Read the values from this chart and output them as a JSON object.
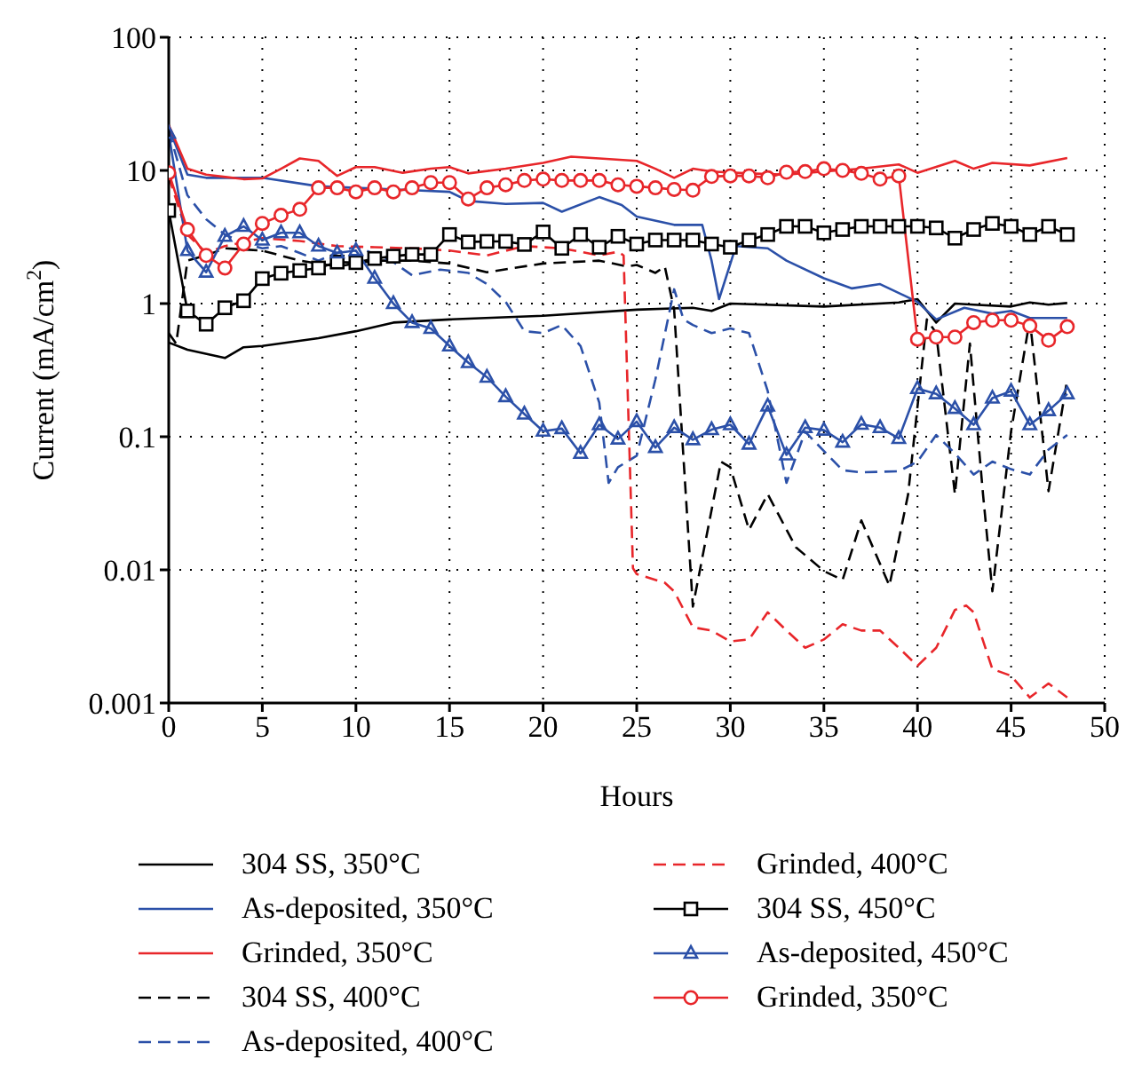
{
  "chart_data": {
    "type": "line",
    "xlabel": "Hours",
    "ylabel": "Current (mA/cm$^{2}$)",
    "xlim": [
      0,
      50
    ],
    "xticks": [
      0,
      5,
      10,
      15,
      20,
      25,
      30,
      35,
      40,
      45,
      50
    ],
    "ylim": [
      0.001,
      100
    ],
    "yticks": [
      0.001,
      0.01,
      0.1,
      1,
      10,
      100
    ],
    "log": "y",
    "grid": true,
    "legend": "bottom",
    "series": [
      {
        "name": "304 SS, 350°C",
        "color": "#000000",
        "line_style": "solid",
        "marker": "none",
        "x": [
          0,
          1,
          3,
          4,
          5,
          8,
          10,
          12,
          15,
          20,
          25,
          28,
          29,
          30,
          35,
          39,
          40,
          41,
          42,
          43,
          45,
          46,
          47,
          48
        ],
        "values": [
          0.51,
          0.45,
          0.39,
          0.47,
          0.48,
          0.55,
          0.62,
          0.72,
          0.76,
          0.81,
          0.9,
          0.93,
          0.88,
          1.0,
          0.95,
          1.02,
          1.08,
          0.72,
          1.0,
          0.98,
          0.95,
          1.02,
          0.98,
          1.01
        ]
      },
      {
        "name": "As-deposited, 350°C",
        "color": "#2b50a8",
        "line_style": "solid",
        "marker": "none",
        "x": [
          0,
          1,
          2,
          5,
          8,
          10,
          13,
          15,
          16,
          18,
          20,
          21,
          23,
          24.2,
          25,
          27,
          28.5,
          29,
          29.4,
          30.3,
          32,
          33,
          35,
          36.5,
          38,
          40,
          41,
          42.5,
          44,
          45,
          46,
          48
        ],
        "values": [
          21,
          9.3,
          8.8,
          8.8,
          7.6,
          7.4,
          7.1,
          6.9,
          5.9,
          5.6,
          5.7,
          4.9,
          6.3,
          5.5,
          4.5,
          3.9,
          3.9,
          2.1,
          1.08,
          2.7,
          2.6,
          2.1,
          1.55,
          1.3,
          1.4,
          1.03,
          0.76,
          0.93,
          0.84,
          0.88,
          0.78,
          0.78
        ]
      },
      {
        "name": "Grinded, 350°C",
        "color": "#e8262a",
        "line_style": "solid",
        "marker": "none",
        "x": [
          0,
          1,
          2,
          4,
          5,
          6,
          7,
          8,
          9,
          10,
          11,
          12.5,
          14,
          15,
          16,
          18,
          20,
          21.5,
          23,
          25,
          26,
          27,
          28,
          29,
          31,
          33,
          35,
          37,
          39,
          40,
          42,
          43,
          44,
          46,
          48
        ],
        "values": [
          22,
          10.3,
          9.3,
          8.6,
          8.7,
          10.3,
          12.3,
          11.8,
          9.1,
          10.6,
          10.6,
          9.6,
          10.3,
          10.6,
          9.5,
          10.3,
          11.4,
          12.7,
          12.3,
          11.8,
          10.3,
          8.8,
          10.3,
          9.8,
          9.5,
          9.3,
          9.8,
          10.3,
          11.1,
          9.6,
          11.8,
          10.3,
          11.4,
          10.9,
          12.4
        ]
      },
      {
        "name": "304 SS, 400°C",
        "color": "#000000",
        "line_style": "dashed",
        "marker": "none",
        "x": [
          0,
          0.4,
          1,
          2,
          3,
          5,
          7,
          9,
          11,
          13,
          15,
          17,
          20,
          23,
          24.5,
          25,
          26,
          26.5,
          27,
          28,
          29.5,
          30,
          31,
          32,
          33.5,
          35,
          36,
          37,
          38.5,
          39.5,
          40.5,
          41,
          42,
          42.8,
          43.5,
          44,
          45,
          46,
          47,
          48
        ],
        "values": [
          0.6,
          0.5,
          2.1,
          2.3,
          2.6,
          2.5,
          2.1,
          1.9,
          2.1,
          2.1,
          2.0,
          1.72,
          2.0,
          2.1,
          1.9,
          1.95,
          1.7,
          1.9,
          0.9,
          0.0053,
          0.065,
          0.059,
          0.02,
          0.037,
          0.0148,
          0.0098,
          0.0084,
          0.0235,
          0.0076,
          0.037,
          0.76,
          0.6,
          0.037,
          0.5,
          0.037,
          0.0069,
          0.11,
          0.76,
          0.039,
          0.27
        ]
      },
      {
        "name": "As-deposited, 400°C",
        "color": "#2b50a8",
        "line_style": "dashed",
        "marker": "none",
        "x": [
          0,
          1,
          2,
          3,
          4,
          5,
          6,
          7,
          8,
          9,
          10,
          11,
          12,
          13,
          14.5,
          16,
          17,
          18,
          19,
          20,
          21,
          22,
          23,
          23.5,
          24,
          25,
          26,
          27,
          27.5,
          28,
          29,
          30,
          31,
          32,
          33,
          34,
          36,
          37,
          39,
          40,
          41,
          42,
          43,
          44,
          45,
          46,
          47,
          48
        ],
        "values": [
          20,
          6.5,
          4.3,
          3.3,
          2.85,
          2.6,
          2.7,
          2.4,
          2.1,
          2.4,
          2.7,
          2.35,
          2.05,
          1.63,
          1.8,
          1.7,
          1.4,
          1.03,
          0.62,
          0.6,
          0.69,
          0.48,
          0.18,
          0.045,
          0.059,
          0.072,
          0.27,
          1.28,
          0.76,
          0.69,
          0.6,
          0.65,
          0.6,
          0.22,
          0.045,
          0.109,
          0.056,
          0.054,
          0.055,
          0.065,
          0.103,
          0.075,
          0.052,
          0.065,
          0.057,
          0.052,
          0.08,
          0.103
        ]
      },
      {
        "name": "Grinded, 400°C",
        "color": "#e8262a",
        "line_style": "dashed",
        "marker": "none",
        "x": [
          0,
          1,
          2,
          3,
          5,
          7,
          9,
          11,
          13,
          15,
          17,
          19,
          21,
          23,
          24,
          24.3,
          24.8,
          25,
          26.5,
          27,
          28,
          29,
          30,
          31,
          32,
          33,
          34,
          35,
          36,
          37,
          38,
          39,
          40,
          41,
          42,
          42.6,
          43,
          44,
          45,
          46,
          47,
          48
        ],
        "values": [
          9,
          3.3,
          2.4,
          2.7,
          3.1,
          2.95,
          2.7,
          2.65,
          2.6,
          2.5,
          2.3,
          2.7,
          2.6,
          2.3,
          2.45,
          2.3,
          0.0103,
          0.0093,
          0.008,
          0.0069,
          0.0037,
          0.0035,
          0.0029,
          0.003,
          0.0048,
          0.0035,
          0.0026,
          0.003,
          0.0039,
          0.0035,
          0.0035,
          0.0026,
          0.0019,
          0.0026,
          0.005,
          0.0054,
          0.0048,
          0.0018,
          0.0016,
          0.0011,
          0.0014,
          0.0011
        ]
      },
      {
        "name": "304 SS, 450°C",
        "color": "#000000",
        "line_style": "solid",
        "marker": "square",
        "x": [
          0,
          1,
          2,
          3,
          4,
          5,
          6,
          7,
          8,
          9,
          10,
          11,
          12,
          13,
          14,
          15,
          16,
          17,
          18,
          19,
          20,
          21,
          22,
          23,
          24,
          25,
          26,
          27,
          28,
          29,
          30,
          31,
          32,
          33,
          34,
          35,
          36,
          37,
          38,
          39,
          40,
          41,
          42,
          43,
          44,
          45,
          46,
          47,
          48
        ],
        "values": [
          5.0,
          0.88,
          0.7,
          0.93,
          1.05,
          1.54,
          1.69,
          1.77,
          1.85,
          2.05,
          2.03,
          2.18,
          2.27,
          2.34,
          2.34,
          3.3,
          2.9,
          2.93,
          2.93,
          2.78,
          3.45,
          2.6,
          3.3,
          2.65,
          3.2,
          2.8,
          3.0,
          3.0,
          3.0,
          2.8,
          2.65,
          3.0,
          3.3,
          3.8,
          3.8,
          3.4,
          3.6,
          3.8,
          3.8,
          3.8,
          3.8,
          3.7,
          3.1,
          3.6,
          4.0,
          3.8,
          3.3,
          3.8,
          3.3
        ]
      },
      {
        "name": "As-deposited, 450°C",
        "color": "#2b50a8",
        "line_style": "solid",
        "marker": "triangle",
        "x": [
          0,
          1,
          2,
          3,
          4,
          5,
          6,
          7,
          8,
          9,
          10,
          11,
          12,
          13,
          14,
          15,
          16,
          17,
          18,
          19,
          20,
          21,
          22,
          23,
          24,
          25,
          26,
          27,
          28,
          29,
          30,
          31,
          32,
          33,
          34,
          35,
          36,
          37,
          38,
          39,
          40,
          41,
          42,
          43,
          44,
          45,
          46,
          47,
          48
        ],
        "values": [
          19,
          2.5,
          1.72,
          3.2,
          3.8,
          3.0,
          3.4,
          3.4,
          2.7,
          2.4,
          2.5,
          1.55,
          1.0,
          0.72,
          0.65,
          0.48,
          0.36,
          0.28,
          0.2,
          0.148,
          0.11,
          0.115,
          0.075,
          0.123,
          0.096,
          0.13,
          0.083,
          0.117,
          0.095,
          0.113,
          0.123,
          0.088,
          0.17,
          0.073,
          0.117,
          0.112,
          0.091,
          0.124,
          0.117,
          0.097,
          0.23,
          0.21,
          0.163,
          0.123,
          0.195,
          0.22,
          0.123,
          0.157,
          0.21
        ]
      },
      {
        "name": "Grinded, 350°C",
        "color": "#e8262a",
        "line_style": "solid",
        "marker": "circle",
        "x": [
          0,
          1,
          2,
          3,
          4,
          5,
          6,
          7,
          8,
          9,
          10,
          11,
          12,
          13,
          14,
          15,
          16,
          17,
          18,
          19,
          20,
          21,
          22,
          23,
          24,
          25,
          26,
          27,
          28,
          29,
          30,
          31,
          32,
          33,
          34,
          35,
          36,
          37,
          38,
          39,
          40,
          41,
          42,
          43,
          44,
          45,
          46,
          47,
          48
        ],
        "values": [
          9.6,
          3.6,
          2.3,
          1.85,
          2.8,
          4.0,
          4.6,
          5.1,
          7.4,
          7.4,
          6.9,
          7.4,
          6.9,
          7.4,
          8.1,
          8.1,
          6.1,
          7.4,
          7.8,
          8.4,
          8.6,
          8.4,
          8.4,
          8.4,
          7.8,
          7.6,
          7.4,
          7.2,
          7.1,
          9.0,
          9.1,
          9.1,
          8.8,
          9.7,
          9.8,
          10.3,
          10,
          9.5,
          8.6,
          9.1,
          0.54,
          0.56,
          0.56,
          0.72,
          0.75,
          0.75,
          0.68,
          0.53,
          0.67
        ]
      }
    ]
  }
}
